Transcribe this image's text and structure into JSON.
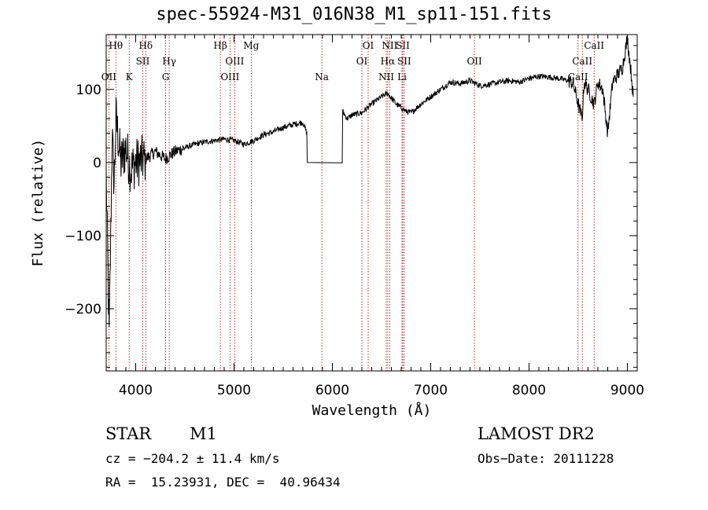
{
  "chart_data": {
    "type": "line",
    "title": "spec-55924-M31_016N38_M1_sp11-151.fits",
    "xlabel": "Wavelength (Å)",
    "ylabel": "Flux (relative)",
    "xlim": [
      3700,
      9100
    ],
    "ylim": [
      -285,
      175
    ],
    "xticks": [
      4000,
      5000,
      6000,
      7000,
      8000,
      9000
    ],
    "yticks": [
      -200,
      -100,
      0,
      100
    ],
    "grid": false,
    "series": [
      {
        "x": [
          3700,
          3730,
          3750,
          3760,
          3780,
          3800,
          3850,
          3900,
          3950,
          4000,
          4100,
          4200,
          4300,
          4400,
          4500,
          4600,
          4700,
          4800,
          4900,
          5000,
          5100,
          5200,
          5300,
          5400,
          5500,
          5600,
          5700,
          5740,
          5745,
          6100,
          6105,
          6150,
          6200,
          6300,
          6400,
          6500,
          6560,
          6650,
          6700,
          6750,
          6800,
          6900,
          7000,
          7100,
          7200,
          7300,
          7400,
          7500,
          7600,
          7700,
          7800,
          7900,
          8000,
          8100,
          8200,
          8300,
          8400,
          8450,
          8500,
          8540,
          8560,
          8600,
          8662,
          8700,
          8750,
          8800,
          8850,
          8900,
          8950,
          9000,
          9040,
          9060
        ],
        "y": [
          -20,
          -240,
          -60,
          40,
          -30,
          60,
          0,
          20,
          -10,
          0,
          5,
          15,
          5,
          15,
          20,
          25,
          28,
          30,
          32,
          30,
          25,
          30,
          38,
          42,
          48,
          52,
          55,
          40,
          0,
          0,
          70,
          60,
          65,
          68,
          80,
          90,
          95,
          80,
          75,
          70,
          68,
          80,
          90,
          100,
          110,
          108,
          112,
          105,
          107,
          110,
          112,
          110,
          115,
          118,
          117,
          115,
          112,
          108,
          80,
          60,
          110,
          100,
          80,
          110,
          100,
          40,
          110,
          120,
          130,
          170,
          120,
          90
        ]
      }
    ],
    "line_markers": [
      {
        "label": "Hθ",
        "x": 3798,
        "row": 1
      },
      {
        "label": "OII",
        "x": 3727,
        "row": 3
      },
      {
        "label": "K",
        "x": 3934,
        "row": 3
      },
      {
        "label": "Hδ",
        "x": 4102,
        "row": 1
      },
      {
        "label": "SII",
        "x": 4072,
        "row": 2
      },
      {
        "label": "Hγ",
        "x": 4341,
        "row": 2
      },
      {
        "label": "G",
        "x": 4304,
        "row": 3
      },
      {
        "label": "Hβ",
        "x": 4861,
        "row": 1
      },
      {
        "label": "OIII",
        "x": 5007,
        "row": 2
      },
      {
        "label": "OIII",
        "x": 4959,
        "row": 3
      },
      {
        "label": "Mg",
        "x": 5175,
        "row": 1
      },
      {
        "label": "Na",
        "x": 5893,
        "row": 3
      },
      {
        "label": "OI",
        "x": 6364,
        "row": 1
      },
      {
        "label": "OI",
        "x": 6300,
        "row": 2
      },
      {
        "label": "NII",
        "x": 6583,
        "row": 1
      },
      {
        "label": "SII",
        "x": 6716,
        "row": 1
      },
      {
        "label": "Hα",
        "x": 6563,
        "row": 2
      },
      {
        "label": "SII",
        "x": 6731,
        "row": 2
      },
      {
        "label": "NII",
        "x": 6548,
        "row": 3
      },
      {
        "label": "Li",
        "x": 6708,
        "row": 3
      },
      {
        "label": "OII",
        "x": 7445,
        "row": 2
      },
      {
        "label": "CaII",
        "x": 8662,
        "row": 1
      },
      {
        "label": "CaII",
        "x": 8542,
        "row": 2
      },
      {
        "label": "CaII",
        "x": 8498,
        "row": 3
      }
    ],
    "annotations": {
      "type_label": "STAR",
      "subclass": "M1",
      "survey": "LAMOST DR2",
      "cz": "cz = −204.2 ± 11.4 km/s",
      "obs_date": "Obs−Date: 20111228",
      "coords": "RA =  15.23931, DEC =  40.96434"
    },
    "colors": {
      "spectrum": "#000000",
      "line_markers": "#aa0000",
      "axes": "#000000"
    }
  }
}
